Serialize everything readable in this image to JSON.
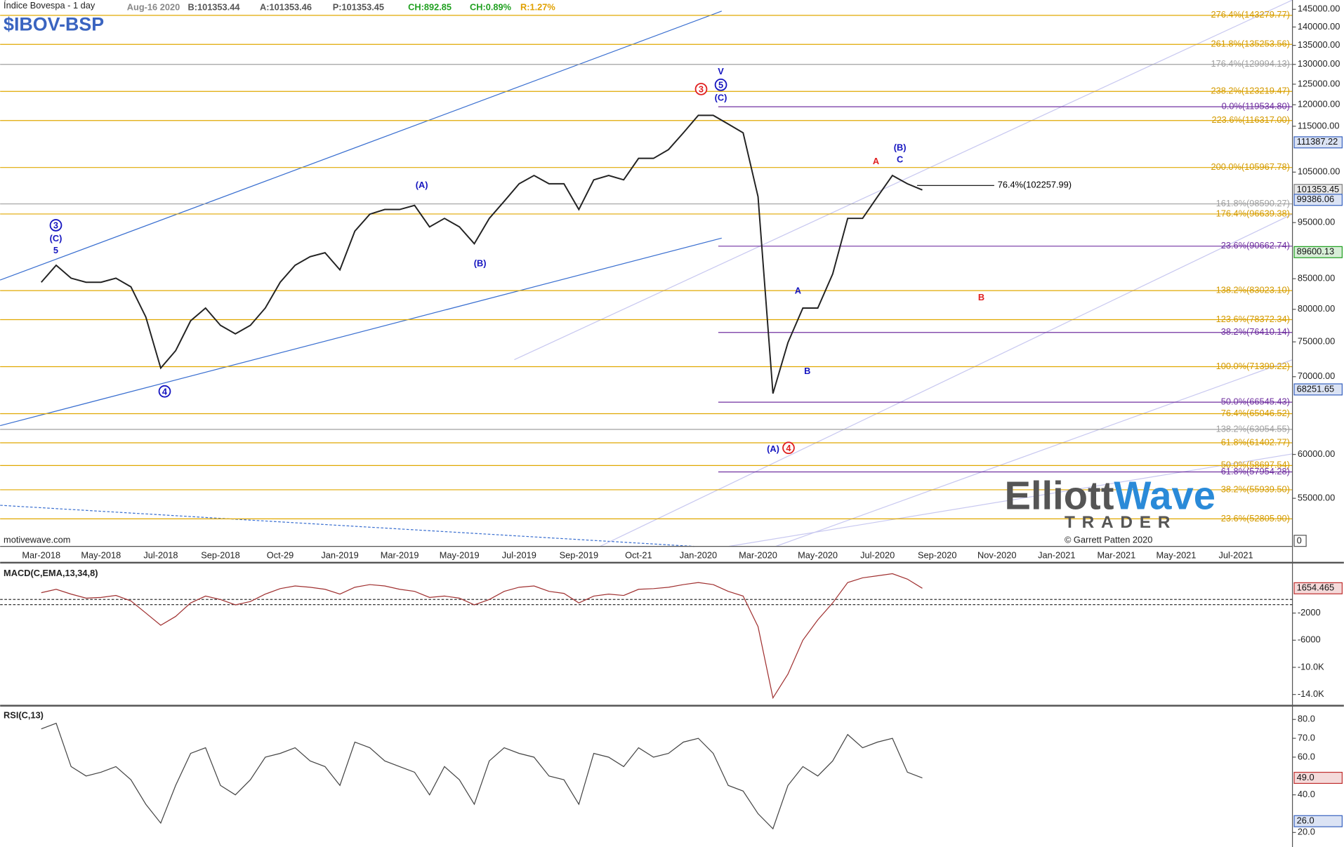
{
  "header": {
    "title": "Índice Bovespa - 1 day",
    "date": "Aug-16 2020",
    "bid": "B:101353.44",
    "ask": "A:101353.46",
    "price": "P:101353.45",
    "change": "CH:892.85",
    "change_pct": "CH:0.89%",
    "range": "R:1.27%",
    "symbol": "$IBOV-BSP"
  },
  "footer": {
    "source": "motivewave.com",
    "copyright": "© Garrett Patten 2020",
    "logo_left": "Elliott",
    "logo_right": "Wave",
    "logo_bottom": "TRADER",
    "corner": "0"
  },
  "chart_data": [
    {
      "type": "line",
      "log_scale": true,
      "color": "#222222",
      "categories": [
        "Mar-2018",
        null,
        null,
        null,
        "May-2018",
        null,
        null,
        null,
        "Jul-2018",
        null,
        null,
        null,
        "Sep-2018",
        null,
        null,
        null,
        "Oct-29",
        null,
        null,
        null,
        "Jan-2019",
        null,
        null,
        null,
        "Mar-2019",
        null,
        null,
        null,
        "May-2019",
        null,
        null,
        null,
        "Jul-2019",
        null,
        null,
        null,
        "Sep-2019",
        null,
        null,
        null,
        "Oct-21",
        null,
        null,
        null,
        "Jan-2020",
        null,
        null,
        null,
        "Mar-2020",
        null,
        null,
        null,
        "May-2020",
        null,
        null,
        null,
        "Jul-2020",
        null,
        null,
        null,
        "Sep-2020",
        null,
        null,
        null,
        "Nov-2020",
        null,
        null,
        null,
        "Jan-2021",
        null,
        null,
        null,
        "Mar-2021",
        null,
        null,
        null,
        "May-2021",
        null,
        null,
        null,
        "Jul-2021"
      ],
      "values": [
        84400,
        87300,
        85100,
        84400,
        84400,
        85100,
        83650,
        78800,
        71200,
        73700,
        78200,
        80200,
        77500,
        76200,
        77500,
        80200,
        84400,
        87300,
        88800,
        89500,
        86500,
        93400,
        96600,
        97500,
        97500,
        98300,
        94200,
        95800,
        94200,
        91100,
        95800,
        99100,
        102600,
        104300,
        102600,
        102600,
        97500,
        103400,
        104300,
        103400,
        107900,
        107900,
        109800,
        113500,
        117500,
        117500,
        115500,
        113500,
        100000,
        67700,
        74900,
        80200,
        80200,
        85800,
        95800,
        95800,
        100000,
        104300,
        102600,
        101353.45,
        null,
        null,
        null,
        null,
        null,
        null,
        null,
        null,
        null,
        null,
        null,
        null,
        null,
        null,
        null,
        null,
        null,
        null,
        null,
        null,
        null
      ],
      "ylim": [
        50000,
        147700
      ],
      "yticks": [
        {
          "value": 145000,
          "label": "145000.00"
        },
        {
          "value": 140000,
          "label": "140000.00"
        },
        {
          "value": 135000,
          "label": "135000.00"
        },
        {
          "value": 130000,
          "label": "130000.00"
        },
        {
          "value": 125000,
          "label": "125000.00"
        },
        {
          "value": 120000,
          "label": "120000.00"
        },
        {
          "value": 115000,
          "label": "115000.00"
        },
        {
          "value": 105000,
          "label": "105000.00"
        },
        {
          "value": 95000,
          "label": "95000.00"
        },
        {
          "value": 85000,
          "label": "85000.00"
        },
        {
          "value": 80000,
          "label": "80000.00"
        },
        {
          "value": 75000,
          "label": "75000.00"
        },
        {
          "value": 70000,
          "label": "70000.00"
        },
        {
          "value": 60000,
          "label": "60000.00"
        },
        {
          "value": 55000,
          "label": "55000.00"
        }
      ],
      "levels": [
        {
          "value": 143279.77,
          "label": "276.4%(143279.77)",
          "color": "#e0a800"
        },
        {
          "value": 135253.56,
          "label": "261.8%(135253.56)",
          "color": "#e0a800"
        },
        {
          "value": 129994.13,
          "label": "176.4%(129994.13)",
          "color": "#a0a0a0"
        },
        {
          "value": 123219.47,
          "label": "238.2%(123219.47)",
          "color": "#e0a800"
        },
        {
          "value": 119534.8,
          "label": "0.0%(119534.80)",
          "color": "#7030a0"
        },
        {
          "value": 116317,
          "label": "223.6%(116317.00)",
          "color": "#e0a800"
        },
        {
          "value": 105967.78,
          "label": "200.0%(105967.78)",
          "color": "#e0a800"
        },
        {
          "value": 102257.99,
          "label": "76.4%(102257.99)",
          "color": "#000000"
        },
        {
          "value": 98590.27,
          "label": "161.8%(98590.27)",
          "color": "#a0a0a0"
        },
        {
          "value": 96639.38,
          "label": "176.4%(96639.38)",
          "color": "#e0a800"
        },
        {
          "value": 90662.74,
          "label": "23.6%(90662.74)",
          "color": "#7030a0"
        },
        {
          "value": 83023.1,
          "label": "138.2%(83023.10)",
          "color": "#e0a800"
        },
        {
          "value": 78372.34,
          "label": "123.6%(78372.34)",
          "color": "#e0a800"
        },
        {
          "value": 76410.14,
          "label": "38.2%(76410.14)",
          "color": "#7030a0"
        },
        {
          "value": 71399.22,
          "label": "100.0%(71399.22)",
          "color": "#e0a800"
        },
        {
          "value": 66545.43,
          "label": "50.0%(66545.43)",
          "color": "#7030a0"
        },
        {
          "value": 65046.52,
          "label": "76.4%(65046.52)",
          "color": "#e0a800"
        },
        {
          "value": 63054.55,
          "label": "138.2%(63054.55)",
          "color": "#a0a0a0"
        },
        {
          "value": 61402.77,
          "label": "61.8%(61402.77)",
          "color": "#e0a800"
        },
        {
          "value": 58697.54,
          "label": "50.0%(58697.54)",
          "color": "#e0a800"
        },
        {
          "value": 57954.28,
          "label": "61.8%(57954.28)",
          "color": "#7030a0"
        },
        {
          "value": 55939.5,
          "label": "38.2%(55939.50)",
          "color": "#e0a800"
        },
        {
          "value": 52805.9,
          "label": "23.6%(52805.90)",
          "color": "#e0a800"
        }
      ],
      "price_markers": [
        {
          "value": 111387.22,
          "label": "111387.22",
          "color": "#3a64c0"
        },
        {
          "value": 101353.45,
          "label": "101353.45",
          "color": "#808080"
        },
        {
          "value": 99386.06,
          "label": "99386.06",
          "color": "#3a64c0"
        },
        {
          "value": 89600.13,
          "label": "89600.13",
          "color": "#20a020"
        },
        {
          "value": 68251.65,
          "label": "68251.65",
          "color": "#3a64c0"
        }
      ],
      "wave_labels": [
        {
          "text": "3",
          "color": "#1515c0",
          "circled": true
        },
        {
          "text": "(C)",
          "color": "#1515c0",
          "circled": false
        },
        {
          "text": "5",
          "color": "#1515c0",
          "circled": false
        },
        {
          "text": "4",
          "color": "#1515c0",
          "circled": true
        },
        {
          "text": "(A)",
          "color": "#1515c0",
          "circled": false
        },
        {
          "text": "(B)",
          "color": "#1515c0",
          "circled": false
        },
        {
          "text": "3",
          "color": "#e02020",
          "circled": true
        },
        {
          "text": "V",
          "color": "#1515c0",
          "circled": false
        },
        {
          "text": "5",
          "color": "#1515c0",
          "circled": true
        },
        {
          "text": "(C)",
          "color": "#1515c0",
          "circled": false
        },
        {
          "text": "(A)",
          "color": "#1515c0",
          "circled": false
        },
        {
          "text": "4",
          "color": "#e02020",
          "circled": true
        },
        {
          "text": "A",
          "color": "#1515c0",
          "circled": false
        },
        {
          "text": "B",
          "color": "#1515c0",
          "circled": false
        },
        {
          "text": "A",
          "color": "#e02020",
          "circled": false
        },
        {
          "text": "(B)",
          "color": "#1515c0",
          "circled": false
        },
        {
          "text": "C",
          "color": "#1515c0",
          "circled": false
        },
        {
          "text": "B",
          "color": "#e02020",
          "circled": false
        }
      ]
    },
    {
      "type": "line",
      "title": "MACD(C,EMA,13,34,8)",
      "color": "#a03030",
      "values": [
        1000,
        1500,
        800,
        200,
        300,
        600,
        -200,
        -2000,
        -3800,
        -2500,
        -500,
        500,
        0,
        -800,
        -300,
        800,
        1600,
        2000,
        1800,
        1500,
        800,
        1800,
        2200,
        2000,
        1500,
        1200,
        300,
        500,
        200,
        -800,
        0,
        1200,
        1800,
        2000,
        1200,
        900,
        -500,
        500,
        800,
        600,
        1500,
        1600,
        1800,
        2200,
        2500,
        2200,
        1200,
        500,
        -4000,
        -14500,
        -11000,
        -6000,
        -3000,
        -500,
        2500,
        3200,
        3500,
        3800,
        3000,
        1654.465,
        null,
        null,
        null,
        null,
        null,
        null,
        null,
        null,
        null,
        null,
        null,
        null,
        null,
        null,
        null,
        null,
        null,
        null,
        null,
        null,
        null
      ],
      "ylim": [
        -15400,
        5050
      ],
      "yticks": [
        -2000,
        -6000,
        {
          "value": -10000,
          "label": "-10.0K"
        },
        {
          "value": -14000,
          "label": "-14.0K"
        }
      ],
      "price_markers": [
        {
          "value": 1654.465,
          "label": "1654.465",
          "color": "#c03030"
        }
      ]
    },
    {
      "type": "line",
      "title": "RSI(C,13)",
      "color": "#444444",
      "values": [
        75,
        78,
        55,
        50,
        52,
        55,
        48,
        35,
        25,
        45,
        62,
        65,
        45,
        40,
        48,
        60,
        62,
        65,
        58,
        55,
        45,
        68,
        65,
        58,
        55,
        52,
        40,
        55,
        48,
        35,
        58,
        65,
        62,
        60,
        50,
        48,
        35,
        62,
        60,
        55,
        65,
        60,
        62,
        68,
        70,
        62,
        45,
        42,
        30,
        22,
        45,
        55,
        50,
        58,
        72,
        65,
        68,
        70,
        52,
        49,
        null,
        null,
        null,
        null,
        null,
        null,
        null,
        null,
        null,
        null,
        null,
        null,
        null,
        null,
        null,
        null,
        null,
        null,
        null,
        null,
        null
      ],
      "ylim": [
        12.3,
        86.4
      ],
      "yticks": [
        {
          "value": 80,
          "label": "80.0"
        },
        {
          "value": 70,
          "label": "70.0"
        },
        {
          "value": 60,
          "label": "60.0"
        },
        {
          "value": 40,
          "label": "40.0"
        },
        {
          "value": 20,
          "label": "20.0"
        }
      ],
      "price_markers": [
        {
          "value": 49,
          "label": "49.0",
          "color": "#c03030"
        },
        {
          "value": 26,
          "label": "26.0",
          "color": "#3a64c0"
        }
      ]
    }
  ]
}
